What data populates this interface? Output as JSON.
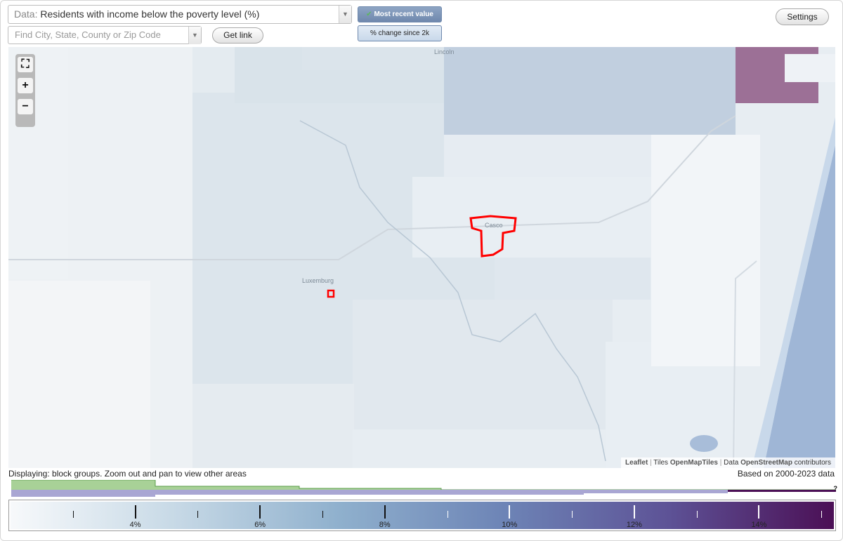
{
  "data_selector": {
    "prefix": "Data:",
    "value": "Residents with income below the poverty level (%)"
  },
  "search": {
    "placeholder": "Find City, State, County or Zip Code"
  },
  "buttons": {
    "get_link": "Get link",
    "settings": "Settings"
  },
  "mode_toggle": {
    "most_recent": "Most recent value",
    "change_since": "% change since 2k",
    "active": "most_recent"
  },
  "map": {
    "labels": {
      "lincoln": "Lincoln",
      "casco": "Casco",
      "luxemburg": "Luxemburg"
    },
    "attribution": {
      "leaflet": "Leaflet",
      "tiles_prefix": "Tiles",
      "tiles_source": "OpenMapTiles",
      "data_prefix": "Data",
      "data_source": "OpenStreetMap",
      "data_suffix": "contributors"
    },
    "colors": {
      "highlight": "#ff0000",
      "water": "#9fb6d6",
      "high_value": "#9c7096"
    }
  },
  "status": {
    "displaying": "Displaying: block groups. Zoom out and pan to view other areas",
    "based_on": "Based on 2000-2023 data"
  },
  "histogram": {
    "help": "?",
    "colors": {
      "green": "#a8d197",
      "purple": "#a9a6d3"
    }
  },
  "legend": {
    "ticks": [
      "4%",
      "6%",
      "8%",
      "10%",
      "12%",
      "14%"
    ],
    "tick_values": [
      4,
      6,
      8,
      10,
      12,
      14
    ],
    "range": [
      2,
      15.2
    ],
    "colors": [
      "#f7f9fb",
      "#c7d9e6",
      "#8fb0cd",
      "#6d84b6",
      "#5d5296",
      "#4b0f55"
    ]
  }
}
